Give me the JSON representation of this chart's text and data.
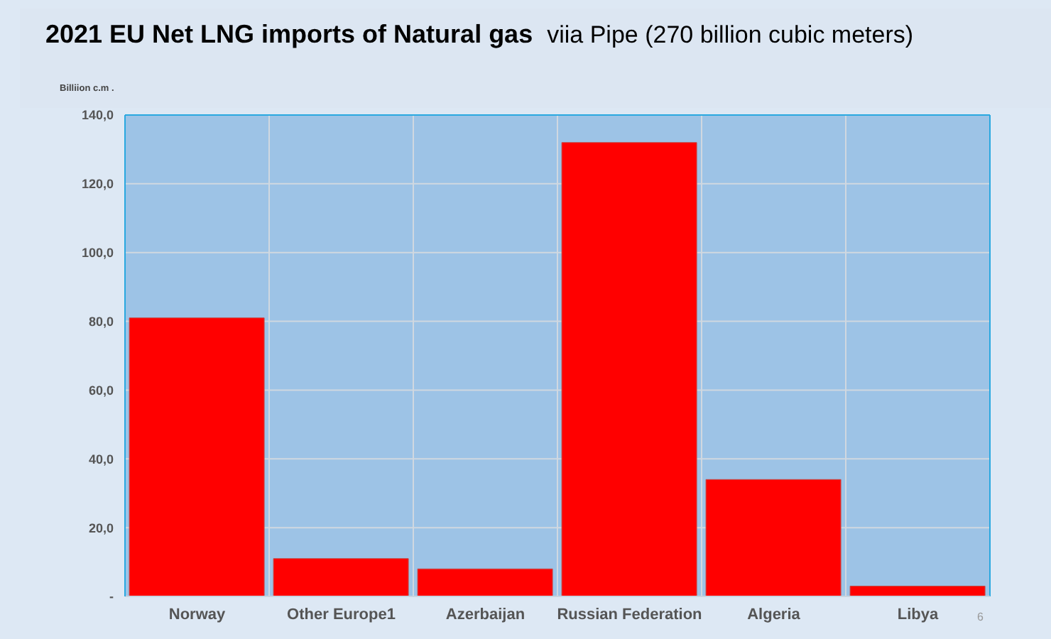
{
  "chart_data": {
    "type": "bar",
    "title": "2021 EU Net LNG imports of Natural gas",
    "subtitle": "viia Pipe (270 billion cubic meters)",
    "ylabel": "Billiion c.m .",
    "categories": [
      "Norway",
      "Other Europe1",
      "Azerbaijan",
      "Russian Federation",
      "Algeria",
      "Libya"
    ],
    "values": [
      81,
      11,
      8,
      132,
      34,
      3
    ],
    "color": "#ff0000",
    "ylim": [
      0,
      140
    ],
    "yticks": [
      {
        "value": 0,
        "label": "-"
      },
      {
        "value": 20,
        "label": "20,0"
      },
      {
        "value": 40,
        "label": "40,0"
      },
      {
        "value": 60,
        "label": "60,0"
      },
      {
        "value": 80,
        "label": "80,0"
      },
      {
        "value": 100,
        "label": "100,0"
      },
      {
        "value": 120,
        "label": "120,0"
      },
      {
        "value": 140,
        "label": "140,0"
      }
    ],
    "grid": true,
    "annotations": [
      "6"
    ]
  }
}
